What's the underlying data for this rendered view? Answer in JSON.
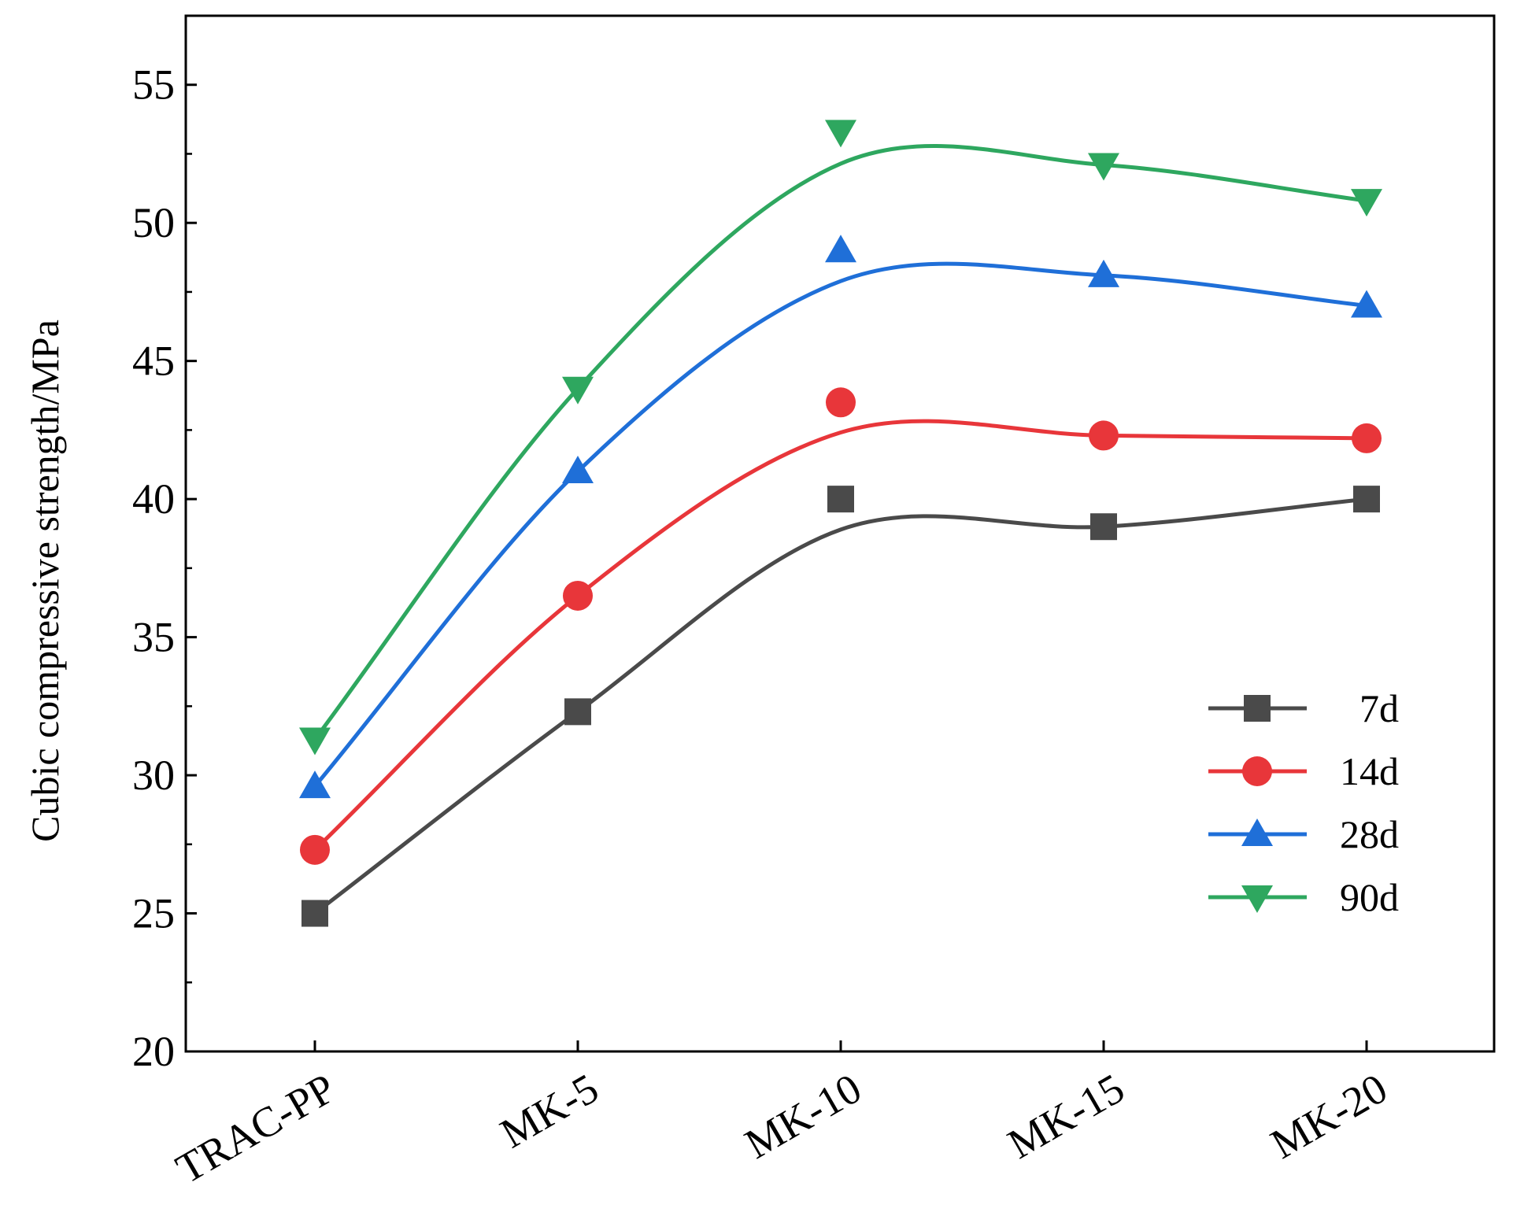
{
  "chart_data": {
    "type": "line",
    "title": "",
    "xlabel": "",
    "ylabel": "Cubic compressive strength/MPa",
    "categories": [
      "TRAC-PP",
      "MK-5",
      "MK-10",
      "MK-15",
      "MK-20"
    ],
    "ylim": [
      20,
      57.5
    ],
    "yticks": [
      20,
      25,
      30,
      35,
      40,
      45,
      50,
      55
    ],
    "grid": false,
    "legend_position": "center-right",
    "series": [
      {
        "name": "7d",
        "marker": "square",
        "color": "#4a4a4a",
        "values": [
          25.0,
          32.3,
          40.0,
          39.0,
          40.0
        ]
      },
      {
        "name": "14d",
        "marker": "circle",
        "color": "#e8363a",
        "values": [
          27.3,
          36.5,
          43.5,
          42.3,
          42.2
        ]
      },
      {
        "name": "28d",
        "marker": "triangle-up",
        "color": "#1f6fd8",
        "values": [
          29.6,
          41.0,
          49.0,
          48.1,
          47.0
        ]
      },
      {
        "name": "90d",
        "marker": "triangle-down",
        "color": "#2ea75f",
        "values": [
          31.3,
          44.0,
          53.3,
          52.1,
          50.8
        ]
      }
    ]
  }
}
